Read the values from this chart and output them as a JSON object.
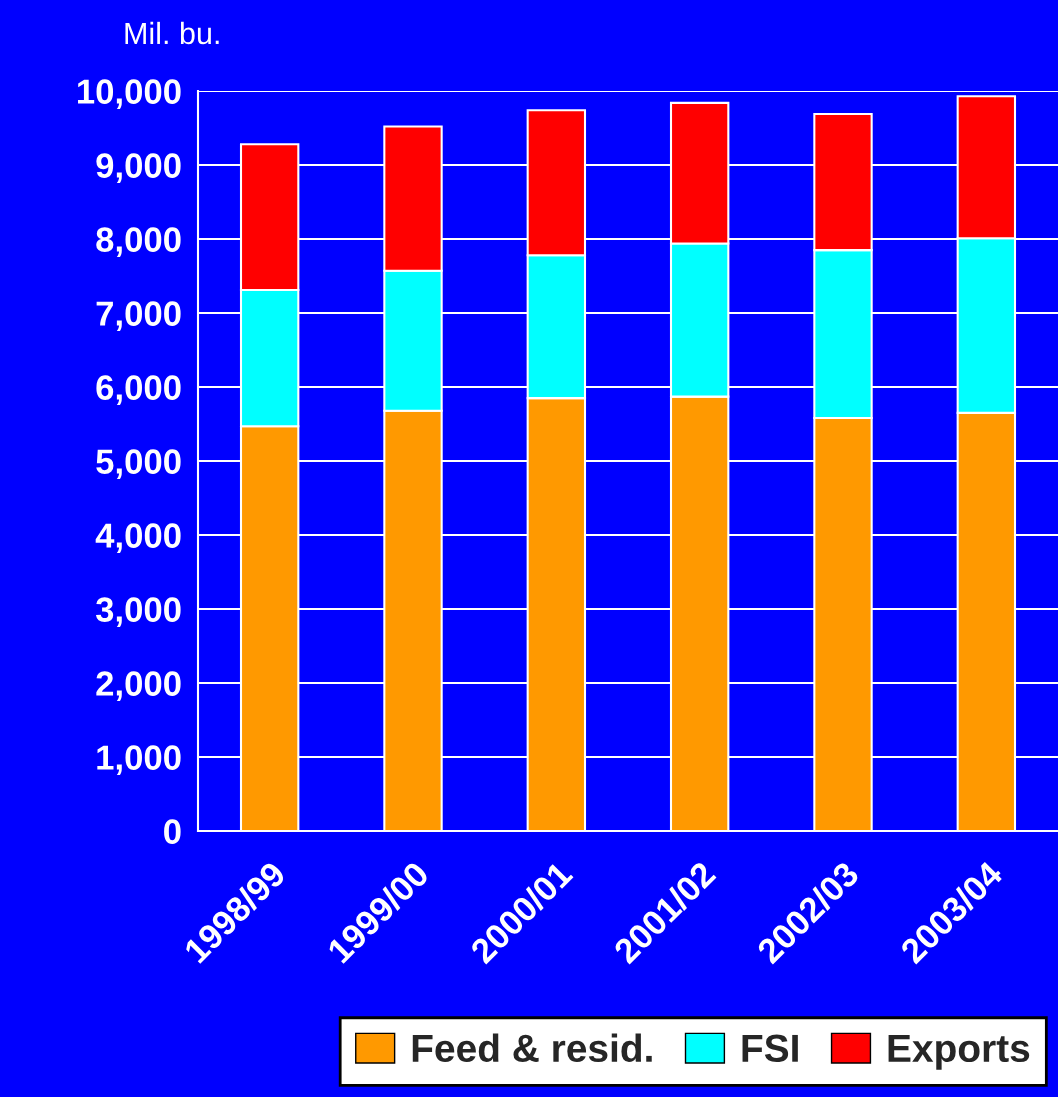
{
  "chart_data": {
    "type": "bar",
    "stacked": true,
    "ylabel": "Mil. bu.",
    "categories": [
      "1998/99",
      "1999/00",
      "2000/01",
      "2001/02",
      "2002/03",
      "2003/04"
    ],
    "series": [
      {
        "name": "Feed & resid.",
        "color": "#ff9900",
        "values": [
          5470,
          5680,
          5850,
          5870,
          5580,
          5650
        ]
      },
      {
        "name": "FSI",
        "color": "#00ffff",
        "values": [
          1840,
          1890,
          1930,
          2070,
          2270,
          2360
        ]
      },
      {
        "name": "Exports",
        "color": "#ff0000",
        "values": [
          1970,
          1950,
          1960,
          1900,
          1840,
          1920
        ]
      }
    ],
    "ylim": [
      0,
      10000
    ],
    "yticks": [
      {
        "value": 0,
        "label": "0"
      },
      {
        "value": 1000,
        "label": "1,000"
      },
      {
        "value": 2000,
        "label": "2,000"
      },
      {
        "value": 3000,
        "label": "3,000"
      },
      {
        "value": 4000,
        "label": "4,000"
      },
      {
        "value": 5000,
        "label": "5,000"
      },
      {
        "value": 6000,
        "label": "6,000"
      },
      {
        "value": 7000,
        "label": "7,000"
      },
      {
        "value": 8000,
        "label": "8,000"
      },
      {
        "value": 9000,
        "label": "9,000"
      },
      {
        "value": 10000,
        "label": "10,000"
      }
    ],
    "grid": "y",
    "legend": "bottom"
  }
}
